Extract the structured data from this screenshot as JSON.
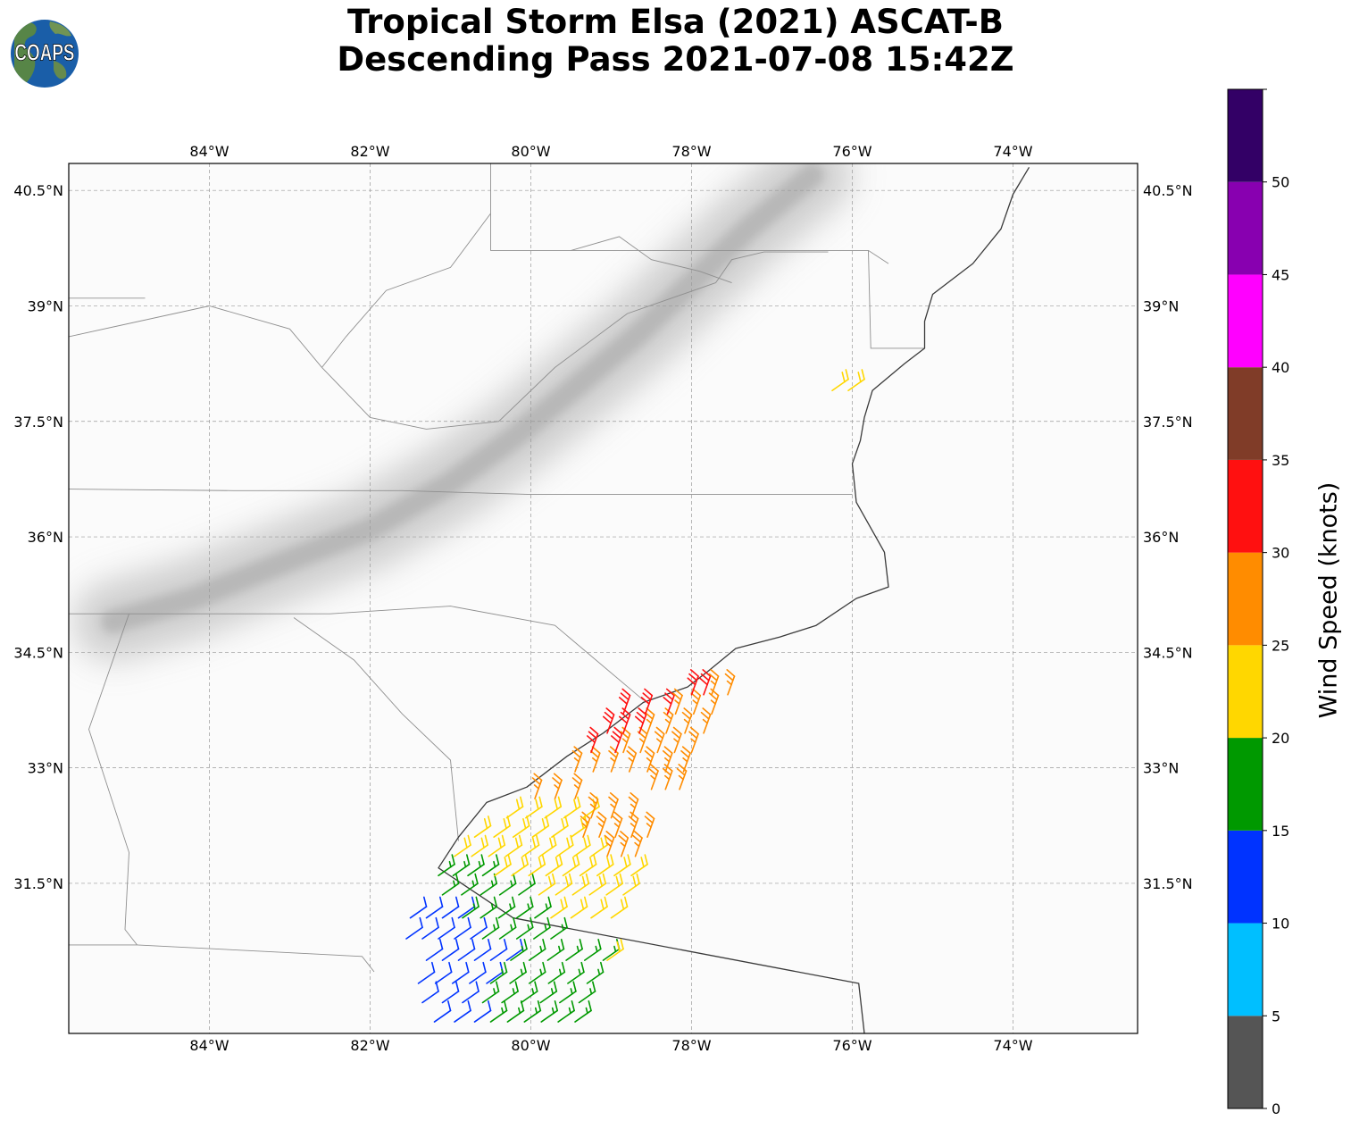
{
  "title": {
    "line1": "Tropical Storm Elsa (2021) ASCAT-B",
    "line2": "Descending Pass 2021-07-08 15:42Z"
  },
  "logo": {
    "text": "COAPS",
    "ocean_color": "#1a5ea8",
    "land_color": "#5e8a3c"
  },
  "map": {
    "lon_range": [
      -85.75,
      -72.45
    ],
    "lat_range": [
      29.55,
      40.85
    ],
    "lon_ticks": [
      {
        "value": -84,
        "label": "84°W"
      },
      {
        "value": -82,
        "label": "82°W"
      },
      {
        "value": -80,
        "label": "80°W"
      },
      {
        "value": -78,
        "label": "78°W"
      },
      {
        "value": -76,
        "label": "76°W"
      },
      {
        "value": -74,
        "label": "74°W"
      }
    ],
    "lat_ticks": [
      {
        "value": 40.5,
        "label": "40.5°N"
      },
      {
        "value": 39.0,
        "label": "39°N"
      },
      {
        "value": 37.5,
        "label": "37.5°N"
      },
      {
        "value": 36.0,
        "label": "36°N"
      },
      {
        "value": 34.5,
        "label": "34.5°N"
      },
      {
        "value": 33.0,
        "label": "33°N"
      },
      {
        "value": 31.5,
        "label": "31.5°N"
      }
    ],
    "gridlines": true,
    "coast": [
      [
        -75.85,
        29.55
      ],
      [
        -75.92,
        30.2
      ],
      [
        -80.22,
        31.05
      ],
      [
        -81.15,
        31.7
      ],
      [
        -80.9,
        32.1
      ],
      [
        -80.55,
        32.55
      ],
      [
        -80.05,
        32.75
      ],
      [
        -79.55,
        33.15
      ],
      [
        -79.1,
        33.45
      ],
      [
        -78.6,
        33.85
      ],
      [
        -78.05,
        34.05
      ],
      [
        -77.8,
        34.25
      ],
      [
        -77.45,
        34.55
      ],
      [
        -76.9,
        34.7
      ],
      [
        -76.45,
        34.85
      ],
      [
        -75.95,
        35.2
      ],
      [
        -75.55,
        35.35
      ],
      [
        -75.6,
        35.8
      ],
      [
        -75.95,
        36.45
      ],
      [
        -76.0,
        36.95
      ],
      [
        -75.9,
        37.25
      ],
      [
        -75.85,
        37.55
      ],
      [
        -75.75,
        37.9
      ],
      [
        -75.35,
        38.25
      ],
      [
        -75.1,
        38.45
      ],
      [
        -75.1,
        38.8
      ],
      [
        -75.0,
        39.15
      ],
      [
        -74.5,
        39.55
      ],
      [
        -74.15,
        40.0
      ],
      [
        -74.0,
        40.45
      ],
      [
        -73.8,
        40.8
      ]
    ],
    "state_borders": [
      [
        [
          -85.75,
          36.62
        ],
        [
          -83.7,
          36.6
        ],
        [
          -81.6,
          36.6
        ],
        [
          -80.0,
          36.55
        ],
        [
          -76.0,
          36.55
        ]
      ],
      [
        [
          -85.75,
          35.0
        ],
        [
          -82.5,
          35.0
        ],
        [
          -81.0,
          35.1
        ],
        [
          -79.7,
          34.85
        ],
        [
          -78.6,
          33.88
        ]
      ],
      [
        [
          -82.95,
          34.95
        ],
        [
          -82.2,
          34.4
        ],
        [
          -81.6,
          33.7
        ],
        [
          -81.0,
          33.1
        ],
        [
          -80.9,
          32.05
        ]
      ],
      [
        [
          -85.0,
          35.0
        ],
        [
          -85.5,
          33.5
        ],
        [
          -85.0,
          31.9
        ],
        [
          -85.05,
          30.9
        ],
        [
          -84.9,
          30.7
        ]
      ],
      [
        [
          -85.75,
          30.7
        ],
        [
          -84.9,
          30.7
        ],
        [
          -82.1,
          30.55
        ],
        [
          -81.95,
          30.35
        ]
      ],
      [
        [
          -80.5,
          40.85
        ],
        [
          -80.5,
          39.72
        ],
        [
          -75.8,
          39.72
        ],
        [
          -75.55,
          39.55
        ]
      ],
      [
        [
          -75.8,
          39.72
        ],
        [
          -75.77,
          38.45
        ],
        [
          -75.1,
          38.45
        ]
      ],
      [
        [
          -82.6,
          38.2
        ],
        [
          -82.3,
          38.6
        ],
        [
          -81.8,
          39.2
        ],
        [
          -81.0,
          39.5
        ],
        [
          -80.5,
          40.2
        ]
      ],
      [
        [
          -82.6,
          38.2
        ],
        [
          -82.0,
          37.55
        ],
        [
          -81.3,
          37.4
        ],
        [
          -80.4,
          37.5
        ],
        [
          -79.7,
          38.2
        ],
        [
          -78.8,
          38.9
        ],
        [
          -77.7,
          39.3
        ]
      ],
      [
        [
          -77.7,
          39.3
        ],
        [
          -77.5,
          39.6
        ],
        [
          -77.1,
          39.7
        ],
        [
          -76.3,
          39.7
        ]
      ],
      [
        [
          -79.5,
          39.72
        ],
        [
          -78.9,
          39.9
        ],
        [
          -78.5,
          39.6
        ],
        [
          -77.9,
          39.45
        ],
        [
          -77.5,
          39.3
        ]
      ],
      [
        [
          -85.75,
          38.6
        ],
        [
          -84.0,
          39.0
        ],
        [
          -83.0,
          38.7
        ],
        [
          -82.6,
          38.2
        ]
      ],
      [
        [
          -85.75,
          39.1
        ],
        [
          -84.8,
          39.1
        ]
      ]
    ],
    "mountain_axis": [
      [
        -85.2,
        34.9
      ],
      [
        -84.2,
        35.2
      ],
      [
        -83.0,
        35.7
      ],
      [
        -82.0,
        36.1
      ],
      [
        -81.0,
        36.7
      ],
      [
        -80.2,
        37.3
      ],
      [
        -79.5,
        37.9
      ],
      [
        -78.7,
        38.6
      ],
      [
        -78.0,
        39.3
      ],
      [
        -77.3,
        40.0
      ],
      [
        -76.5,
        40.7
      ]
    ]
  },
  "colorbar": {
    "label": "Wind Speed (knots)",
    "range": [
      0,
      55
    ],
    "bins": [
      {
        "from": 0,
        "to": 5,
        "color": "#555555"
      },
      {
        "from": 5,
        "to": 10,
        "color": "#00bfff"
      },
      {
        "from": 10,
        "to": 15,
        "color": "#0033ff"
      },
      {
        "from": 15,
        "to": 20,
        "color": "#009900"
      },
      {
        "from": 20,
        "to": 25,
        "color": "#ffd700"
      },
      {
        "from": 25,
        "to": 30,
        "color": "#ff8c00"
      },
      {
        "from": 30,
        "to": 35,
        "color": "#ff1010"
      },
      {
        "from": 35,
        "to": 40,
        "color": "#803c28"
      },
      {
        "from": 40,
        "to": 45,
        "color": "#ff00ff"
      },
      {
        "from": 45,
        "to": 50,
        "color": "#8800b0"
      },
      {
        "from": 50,
        "to": 55,
        "color": "#330066"
      }
    ],
    "ticks": [
      {
        "value": 0,
        "label": "0"
      },
      {
        "value": 5,
        "label": "5"
      },
      {
        "value": 10,
        "label": "10"
      },
      {
        "value": 15,
        "label": "15"
      },
      {
        "value": 20,
        "label": "20"
      },
      {
        "value": 25,
        "label": "25"
      },
      {
        "value": 30,
        "label": "30"
      },
      {
        "value": 35,
        "label": "35"
      },
      {
        "value": 40,
        "label": "40"
      },
      {
        "value": 45,
        "label": "45"
      },
      {
        "value": 50,
        "label": "50"
      }
    ]
  },
  "wind_rows": [
    {
      "lat": 30.78,
      "lon_start": -81.55,
      "lon_end": -80.75,
      "speed": 12
    },
    {
      "lat": 30.78,
      "lon_start": -80.6,
      "lon_end": -79.75,
      "speed": 17
    },
    {
      "lat": 30.5,
      "lon_start": -81.3,
      "lon_end": -80.3,
      "speed": 13
    },
    {
      "lat": 30.5,
      "lon_start": -80.25,
      "lon_end": -79.1,
      "speed": 18
    },
    {
      "lat": 30.5,
      "lon_start": -79.05,
      "lon_end": -78.95,
      "speed": 22
    },
    {
      "lat": 30.2,
      "lon_start": -81.4,
      "lon_end": -80.55,
      "speed": 12
    },
    {
      "lat": 30.2,
      "lon_start": -80.5,
      "lon_end": -79.3,
      "speed": 18
    },
    {
      "lat": 29.95,
      "lon_start": -81.35,
      "lon_end": -80.85,
      "speed": 12
    },
    {
      "lat": 29.95,
      "lon_start": -80.6,
      "lon_end": -79.4,
      "speed": 17
    },
    {
      "lat": 29.7,
      "lon_start": -81.2,
      "lon_end": -80.7,
      "speed": 11
    },
    {
      "lat": 29.7,
      "lon_start": -80.5,
      "lon_end": -79.45,
      "speed": 17
    },
    {
      "lat": 31.05,
      "lon_start": -81.5,
      "lon_end": -80.9,
      "speed": 13
    },
    {
      "lat": 31.05,
      "lon_start": -80.85,
      "lon_end": -79.95,
      "speed": 18
    },
    {
      "lat": 31.05,
      "lon_start": -79.75,
      "lon_end": -79.0,
      "speed": 22
    },
    {
      "lat": 31.35,
      "lon_start": -81.1,
      "lon_end": -80.15,
      "speed": 18
    },
    {
      "lat": 31.35,
      "lon_start": -79.9,
      "lon_end": -78.85,
      "speed": 23
    },
    {
      "lat": 31.6,
      "lon_start": -81.15,
      "lon_end": -80.6,
      "speed": 17
    },
    {
      "lat": 31.6,
      "lon_start": -80.45,
      "lon_end": -78.75,
      "speed": 23
    },
    {
      "lat": 31.85,
      "lon_start": -80.95,
      "lon_end": -79.25,
      "speed": 22
    },
    {
      "lat": 31.85,
      "lon_start": -79.05,
      "lon_end": -78.7,
      "speed": 26
    },
    {
      "lat": 32.1,
      "lon_start": -80.7,
      "lon_end": -79.5,
      "speed": 22
    },
    {
      "lat": 32.1,
      "lon_start": -79.35,
      "lon_end": -78.55,
      "speed": 26
    },
    {
      "lat": 32.35,
      "lon_start": -80.3,
      "lon_end": -79.35,
      "speed": 22
    },
    {
      "lat": 32.35,
      "lon_start": -79.25,
      "lon_end": -78.75,
      "speed": 26
    },
    {
      "lat": 32.6,
      "lon_start": -79.95,
      "lon_end": -79.45,
      "speed": 27
    },
    {
      "lat": 32.72,
      "lon_start": -78.5,
      "lon_end": -78.15,
      "speed": 26
    },
    {
      "lat": 32.95,
      "lon_start": -79.45,
      "lon_end": -78.1,
      "speed": 27
    },
    {
      "lat": 33.2,
      "lon_start": -79.25,
      "lon_end": -78.95,
      "speed": 32
    },
    {
      "lat": 33.2,
      "lon_start": -78.85,
      "lon_end": -78.0,
      "speed": 27
    },
    {
      "lat": 33.45,
      "lon_start": -79.05,
      "lon_end": -78.65,
      "speed": 32
    },
    {
      "lat": 33.45,
      "lon_start": -78.55,
      "lon_end": -77.85,
      "speed": 27
    },
    {
      "lat": 33.7,
      "lon_start": -78.85,
      "lon_end": -78.3,
      "speed": 32
    },
    {
      "lat": 33.7,
      "lon_start": -78.2,
      "lon_end": -77.75,
      "speed": 27
    },
    {
      "lat": 33.95,
      "lon_start": -78.0,
      "lon_end": -77.85,
      "speed": 32
    },
    {
      "lat": 33.95,
      "lon_start": -77.75,
      "lon_end": -77.55,
      "speed": 28
    },
    {
      "lat": 37.9,
      "lon_start": -76.25,
      "lon_end": -76.05,
      "speed": 22
    }
  ]
}
